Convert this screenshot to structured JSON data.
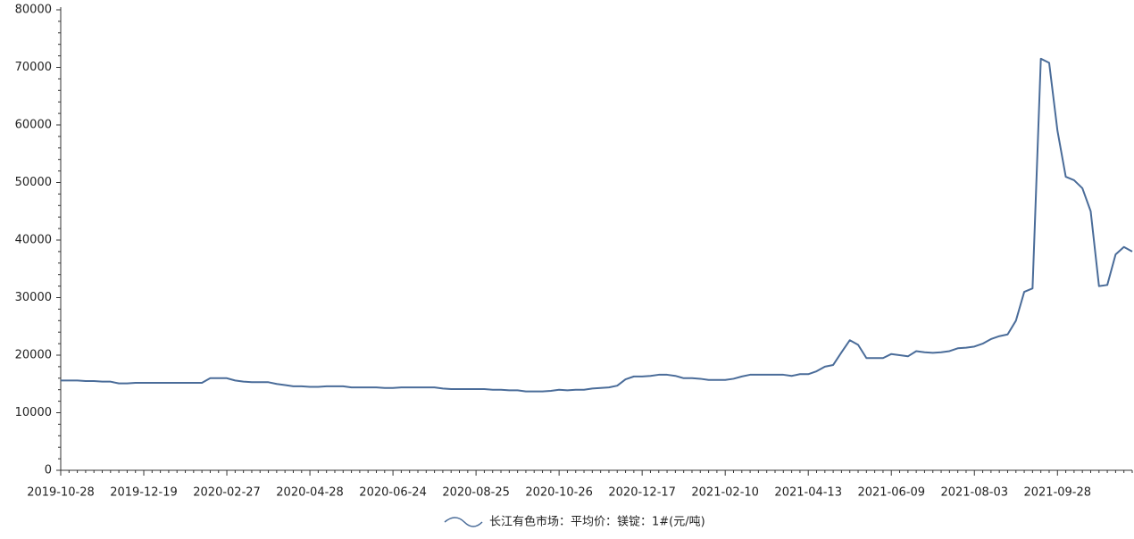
{
  "chart_data": {
    "type": "line",
    "categories": [
      "2019-10-28",
      null,
      null,
      null,
      null,
      null,
      null,
      null,
      null,
      null,
      "2019-12-19",
      null,
      null,
      null,
      null,
      null,
      null,
      null,
      null,
      null,
      "2020-02-27",
      null,
      null,
      null,
      null,
      null,
      null,
      null,
      null,
      null,
      "2020-04-28",
      null,
      null,
      null,
      null,
      null,
      null,
      null,
      null,
      null,
      "2020-06-24",
      null,
      null,
      null,
      null,
      null,
      null,
      null,
      null,
      null,
      "2020-08-25",
      null,
      null,
      null,
      null,
      null,
      null,
      null,
      null,
      null,
      "2020-10-26",
      null,
      null,
      null,
      null,
      null,
      null,
      null,
      null,
      null,
      "2020-12-17",
      null,
      null,
      null,
      null,
      null,
      null,
      null,
      null,
      null,
      "2021-02-10",
      null,
      null,
      null,
      null,
      null,
      null,
      null,
      null,
      null,
      "2021-04-13",
      null,
      null,
      null,
      null,
      null,
      null,
      null,
      null,
      null,
      "2021-06-09",
      null,
      null,
      null,
      null,
      null,
      null,
      null,
      null,
      null,
      "2021-08-03",
      null,
      null,
      null,
      null,
      null,
      null,
      null,
      null,
      null,
      "2021-09-28",
      null,
      null,
      null,
      null,
      null,
      null,
      null,
      null,
      null
    ],
    "series": [
      {
        "name": "长江有色市场：平均价：镁锭：1#(元/吨)",
        "color": "#4a6c99",
        "values": [
          15600,
          15600,
          15600,
          15500,
          15500,
          15400,
          15400,
          15100,
          15100,
          15200,
          15200,
          15200,
          15200,
          15200,
          15200,
          15200,
          15200,
          15200,
          16000,
          16000,
          16000,
          15600,
          15400,
          15300,
          15300,
          15300,
          15000,
          14800,
          14600,
          14600,
          14500,
          14500,
          14600,
          14600,
          14600,
          14400,
          14400,
          14400,
          14400,
          14300,
          14300,
          14400,
          14400,
          14400,
          14400,
          14400,
          14200,
          14100,
          14100,
          14100,
          14100,
          14100,
          14000,
          14000,
          13900,
          13900,
          13700,
          13700,
          13700,
          13800,
          14000,
          13900,
          14000,
          14000,
          14200,
          14300,
          14400,
          14700,
          15800,
          16300,
          16300,
          16400,
          16600,
          16600,
          16400,
          16000,
          16000,
          15900,
          15700,
          15700,
          15700,
          15900,
          16300,
          16600,
          16600,
          16600,
          16600,
          16600,
          16400,
          16700,
          16700,
          17200,
          18000,
          18300,
          20500,
          22600,
          21800,
          19500,
          19500,
          19500,
          20200,
          20000,
          19800,
          20700,
          20500,
          20400,
          20500,
          20700,
          21200,
          21300,
          21500,
          22000,
          22800,
          23300,
          23600,
          26000,
          31000,
          31600,
          71500,
          70800,
          59000,
          51000,
          50400,
          49000,
          45000,
          32000,
          32200,
          37500,
          38800,
          38000
        ]
      }
    ],
    "ylim": [
      0,
      80000
    ],
    "yticks": [
      0,
      10000,
      20000,
      30000,
      40000,
      50000,
      60000,
      70000,
      80000
    ]
  }
}
